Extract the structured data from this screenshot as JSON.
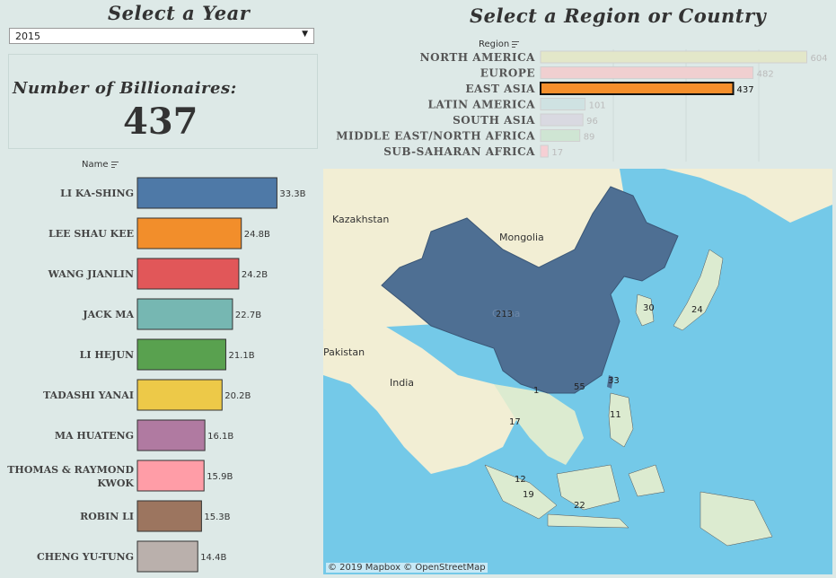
{
  "year_filter": {
    "title": "Select a Year",
    "value": "2015"
  },
  "kpi": {
    "title": "Number of Billionaires:",
    "value": "437"
  },
  "region_panel": {
    "title": "Select a Region or Country",
    "header": "Region"
  },
  "names_panel": {
    "header": "Name"
  },
  "chart_data": [
    {
      "type": "bar",
      "orientation": "horizontal",
      "categories": [
        "NORTH AMERICA",
        "EUROPE",
        "EAST ASIA",
        "LATIN AMERICA",
        "SOUTH ASIA",
        "MIDDLE EAST/NORTH AFRICA",
        "SUB-SAHARAN AFRICA"
      ],
      "values": [
        604,
        482,
        437,
        101,
        96,
        89,
        17
      ],
      "labels": [
        "604",
        "482",
        "437",
        "101",
        "96",
        "89",
        "17"
      ],
      "colors": [
        "#e3e7c9",
        "#f0cfd0",
        "#f58f2c",
        "#cfe2e2",
        "#d9d9e1",
        "#cfe5d3",
        "#f6cfd4"
      ],
      "selected": "EAST ASIA",
      "xlim": [
        0,
        660
      ]
    },
    {
      "type": "bar",
      "orientation": "horizontal",
      "categories": [
        "LI KA-SHING",
        "LEE SHAU KEE",
        "WANG JIANLIN",
        "JACK MA",
        "LI HEJUN",
        "TADASHI YANAI",
        "MA HUATENG",
        "THOMAS & RAYMOND KWOK",
        "ROBIN LI",
        "CHENG YU-TUNG"
      ],
      "values": [
        33.3,
        24.8,
        24.2,
        22.7,
        21.1,
        20.2,
        16.1,
        15.9,
        15.3,
        14.4
      ],
      "labels": [
        "33.3B",
        "24.8B",
        "24.2B",
        "22.7B",
        "21.1B",
        "20.2B",
        "16.1B",
        "15.9B",
        "15.3B",
        "14.4B"
      ],
      "colors": [
        "#4e79a7",
        "#f28e2b",
        "#e15759",
        "#76b7b2",
        "#59a14f",
        "#edc948",
        "#b07aa1",
        "#ff9da7",
        "#9c755f",
        "#bab0ac"
      ],
      "xlim": [
        0,
        36
      ]
    }
  ],
  "map": {
    "labels": [
      "Kazakhstan",
      "Mongolia",
      "Pakistan",
      "India",
      "China"
    ],
    "values": [
      "213",
      "30",
      "24",
      "1",
      "55",
      "33",
      "11",
      "17",
      "12",
      "19",
      "22"
    ],
    "attribution": "© 2019 Mapbox © OpenStreetMap"
  }
}
